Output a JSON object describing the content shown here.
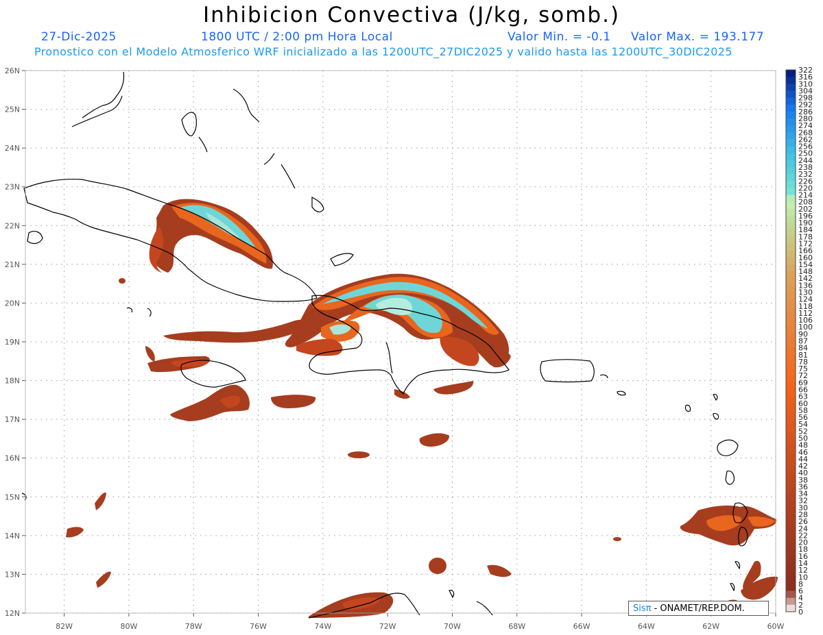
{
  "header": {
    "title": "Inhibicion Convectiva (J/kg, somb.)",
    "date": "27-Dic-2025",
    "time": "1800 UTC / 2:00 pm Hora Local",
    "min_label": "Valor Min. = -0.1",
    "max_label": "Valor Max. = 193.177",
    "forecast_note": "Pronostico con el Modelo Atmosferico WRF inicializado a las 1200UTC_27DIC2025 y valido hasta las  1200UTC_30DIC2025"
  },
  "map": {
    "lon_labels": [
      "82W",
      "80W",
      "78W",
      "76W",
      "74W",
      "72W",
      "70W",
      "68W",
      "66W",
      "64W",
      "62W",
      "60W"
    ],
    "lat_labels": [
      "26N",
      "25N",
      "24N",
      "23N",
      "22N",
      "21N",
      "20N",
      "19N",
      "18N",
      "17N",
      "16N",
      "15N",
      "14N",
      "13N",
      "12N"
    ],
    "lon_range": [
      -83.2,
      -60
    ],
    "lat_range": [
      12,
      26
    ],
    "grid": "dotted"
  },
  "colorbar": {
    "labels": [
      "322",
      "316",
      "310",
      "304",
      "298",
      "292",
      "286",
      "280",
      "274",
      "268",
      "262",
      "256",
      "250",
      "244",
      "238",
      "232",
      "226",
      "220",
      "214",
      "208",
      "202",
      "196",
      "190",
      "184",
      "178",
      "172",
      "166",
      "160",
      "154",
      "148",
      "142",
      "136",
      "130",
      "124",
      "118",
      "112",
      "106",
      "100",
      "90",
      "87",
      "84",
      "81",
      "78",
      "75",
      "72",
      "69",
      "66",
      "63",
      "60",
      "58",
      "56",
      "54",
      "52",
      "50",
      "48",
      "46",
      "44",
      "42",
      "40",
      "38",
      "36",
      "34",
      "32",
      "30",
      "28",
      "26",
      "24",
      "22",
      "20",
      "18",
      "16",
      "14",
      "12",
      "10",
      "8",
      "6",
      "4",
      "2",
      "0"
    ]
  },
  "credit": {
    "sis": "Sisπ",
    "rest": " - ONAMET/REP.DOM."
  },
  "colors": {
    "title": "#000000",
    "subtitle_blue": "#1565ff",
    "subtitle_light": "#1a9af0",
    "low_cin": "#8b2e20",
    "mid_cin": "#e8651e",
    "high_cin": "#5fd0d6"
  }
}
